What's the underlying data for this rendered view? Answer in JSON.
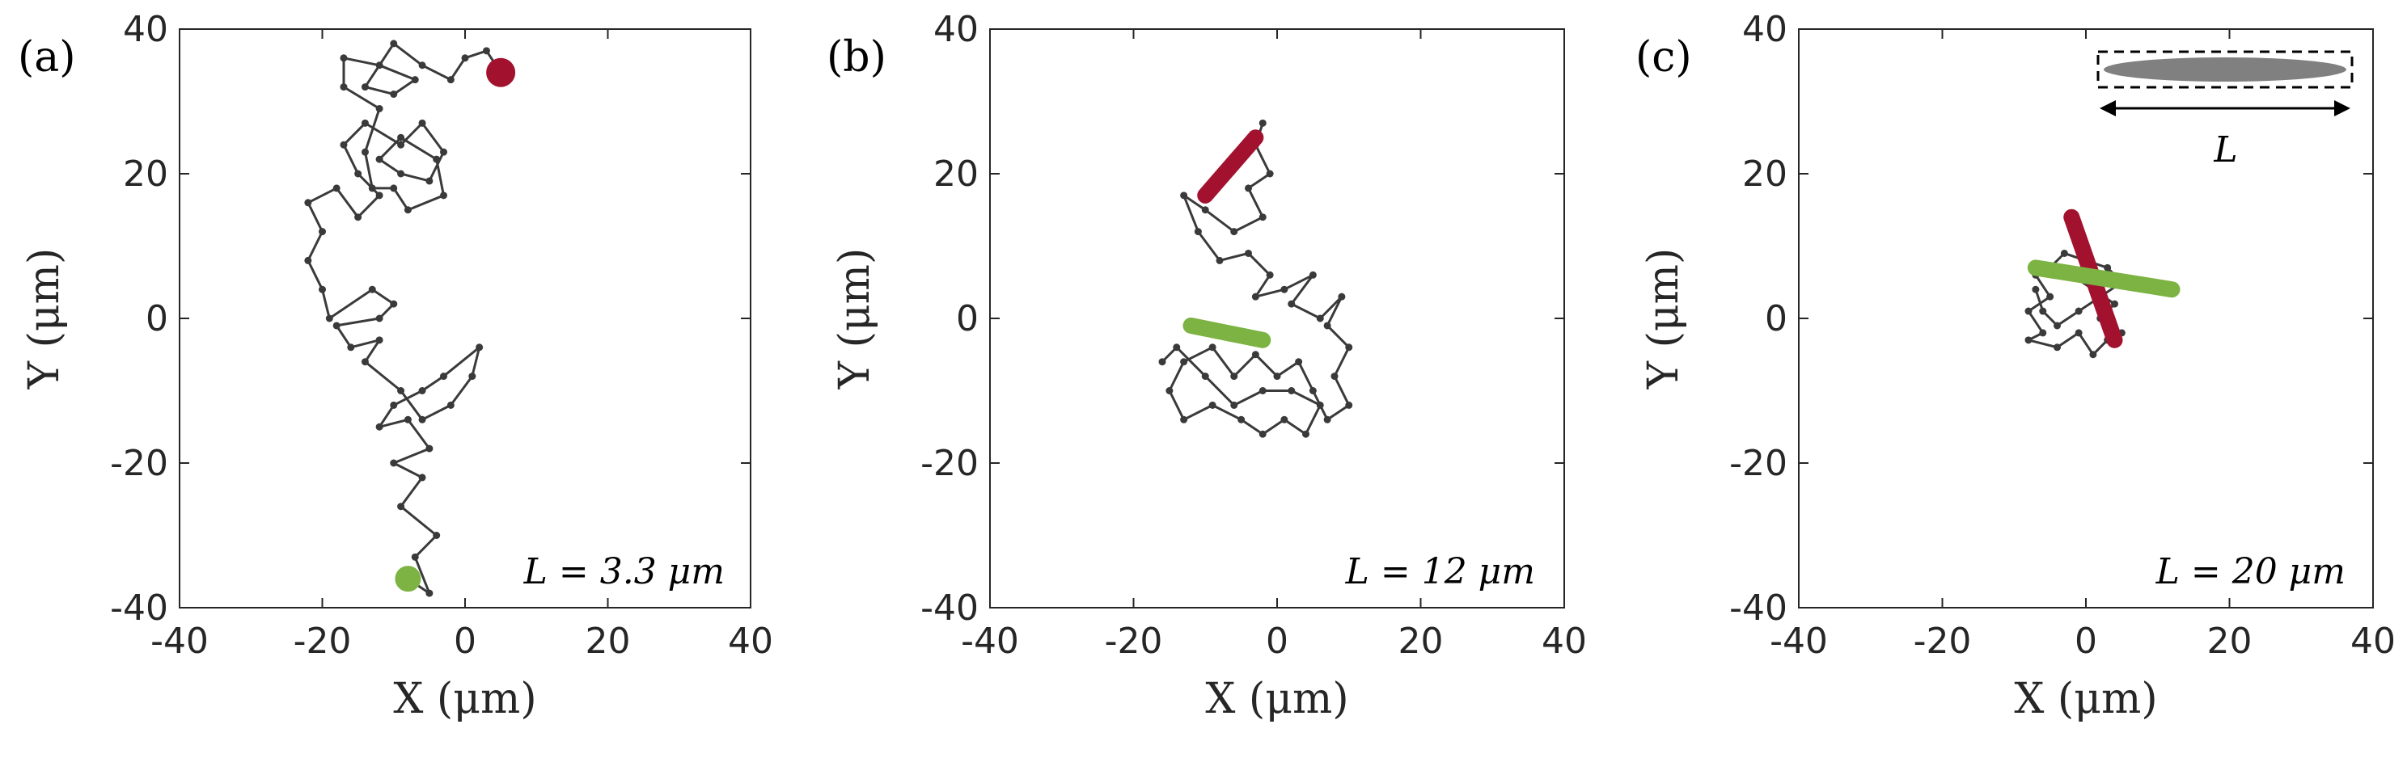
{
  "chart_data": [
    {
      "type": "scatter",
      "panel_label": "(a)",
      "annotation": "L = 3.3 μm",
      "xlabel": "X  (μm)",
      "ylabel": "Y  (μm)",
      "xlim": [
        -40,
        40
      ],
      "ylim": [
        -40,
        40
      ],
      "xticks": [
        "-40",
        "-20",
        "0",
        "20",
        "40"
      ],
      "yticks": [
        "-40",
        "-20",
        "0",
        "20",
        "40"
      ],
      "trajectory": [
        [
          -8,
          -36
        ],
        [
          -5,
          -38
        ],
        [
          -7,
          -33
        ],
        [
          -4,
          -30
        ],
        [
          -9,
          -26
        ],
        [
          -6,
          -22
        ],
        [
          -10,
          -20
        ],
        [
          -5,
          -18
        ],
        [
          -8,
          -14
        ],
        [
          -12,
          -15
        ],
        [
          -10,
          -12
        ],
        [
          -6,
          -10
        ],
        [
          -3,
          -8
        ],
        [
          2,
          -4
        ],
        [
          1,
          -8
        ],
        [
          -2,
          -12
        ],
        [
          -6,
          -14
        ],
        [
          -9,
          -10
        ],
        [
          -14,
          -6
        ],
        [
          -12,
          -3
        ],
        [
          -16,
          -4
        ],
        [
          -18,
          -1
        ],
        [
          -12,
          0
        ],
        [
          -10,
          2
        ],
        [
          -13,
          4
        ],
        [
          -19,
          0
        ],
        [
          -20,
          4
        ],
        [
          -22,
          8
        ],
        [
          -20,
          12
        ],
        [
          -22,
          16
        ],
        [
          -18,
          18
        ],
        [
          -15,
          14
        ],
        [
          -12,
          17
        ],
        [
          -15,
          20
        ],
        [
          -17,
          24
        ],
        [
          -14,
          27
        ],
        [
          -9,
          24
        ],
        [
          -6,
          27
        ],
        [
          -3,
          23
        ],
        [
          -5,
          19
        ],
        [
          -9,
          20
        ],
        [
          -12,
          22
        ],
        [
          -9,
          25
        ],
        [
          -4,
          22
        ],
        [
          -3,
          17
        ],
        [
          -8,
          15
        ],
        [
          -10,
          18
        ],
        [
          -13,
          18
        ],
        [
          -14,
          23
        ],
        [
          -12,
          29
        ],
        [
          -17,
          32
        ],
        [
          -17,
          36
        ],
        [
          -12,
          35
        ],
        [
          -7,
          33
        ],
        [
          -10,
          31
        ],
        [
          -14,
          32
        ],
        [
          -10,
          38
        ],
        [
          -6,
          35
        ],
        [
          -2,
          33
        ],
        [
          0,
          36
        ],
        [
          3,
          37
        ],
        [
          5,
          34
        ]
      ],
      "red_cluster_center": [
        5,
        34
      ],
      "green_cluster_center": [
        -8,
        -36
      ],
      "colors": {
        "trajectory": "#3a3a3a",
        "red": "#a2122f",
        "green": "#7cb342"
      }
    },
    {
      "type": "scatter",
      "panel_label": "(b)",
      "annotation": "L = 12 μm",
      "xlabel": "X  (μm)",
      "ylabel": "Y  (μm)",
      "xlim": [
        -40,
        40
      ],
      "ylim": [
        -40,
        40
      ],
      "xticks": [
        "-40",
        "-20",
        "0",
        "20",
        "40"
      ],
      "yticks": [
        "-40",
        "-20",
        "0",
        "20",
        "40"
      ],
      "trajectory": [
        [
          -2,
          27
        ],
        [
          -3,
          24
        ],
        [
          -1,
          20
        ],
        [
          -4,
          18
        ],
        [
          -2,
          14
        ],
        [
          -6,
          12
        ],
        [
          -10,
          15
        ],
        [
          -13,
          17
        ],
        [
          -11,
          12
        ],
        [
          -8,
          8
        ],
        [
          -4,
          9
        ],
        [
          -1,
          6
        ],
        [
          -3,
          3
        ],
        [
          1,
          4
        ],
        [
          5,
          6
        ],
        [
          2,
          2
        ],
        [
          6,
          0
        ],
        [
          9,
          3
        ],
        [
          7,
          -1
        ],
        [
          10,
          -4
        ],
        [
          8,
          -8
        ],
        [
          10,
          -12
        ],
        [
          7,
          -14
        ],
        [
          5,
          -10
        ],
        [
          3,
          -6
        ],
        [
          0,
          -8
        ],
        [
          -3,
          -5
        ],
        [
          -6,
          -8
        ],
        [
          -9,
          -4
        ],
        [
          -13,
          -6
        ],
        [
          -15,
          -10
        ],
        [
          -13,
          -14
        ],
        [
          -9,
          -12
        ],
        [
          -5,
          -14
        ],
        [
          -2,
          -16
        ],
        [
          1,
          -14
        ],
        [
          4,
          -16
        ],
        [
          6,
          -12
        ],
        [
          2,
          -10
        ],
        [
          -2,
          -10
        ],
        [
          -6,
          -12
        ],
        [
          -10,
          -8
        ],
        [
          -14,
          -4
        ],
        [
          -16,
          -6
        ]
      ],
      "red_segment": [
        [
          -10,
          17
        ],
        [
          -3,
          25
        ]
      ],
      "green_segment": [
        [
          -12,
          -1
        ],
        [
          -2,
          -3
        ]
      ],
      "colors": {
        "trajectory": "#3a3a3a",
        "red": "#a2122f",
        "green": "#7cb342"
      }
    },
    {
      "type": "scatter",
      "panel_label": "(c)",
      "annotation": "L = 20 μm",
      "inset_label": "L",
      "xlabel": "X  (μm)",
      "ylabel": "Y  (μm)",
      "xlim": [
        -40,
        40
      ],
      "ylim": [
        -40,
        40
      ],
      "xticks": [
        "-40",
        "-20",
        "0",
        "20",
        "40"
      ],
      "yticks": [
        "-40",
        "-20",
        "0",
        "20",
        "40"
      ],
      "trajectory": [
        [
          -7,
          6
        ],
        [
          -5,
          3
        ],
        [
          -8,
          1
        ],
        [
          -6,
          -2
        ],
        [
          -8,
          -3
        ],
        [
          -4,
          -4
        ],
        [
          -1,
          -2
        ],
        [
          1,
          -5
        ],
        [
          3,
          -3
        ],
        [
          5,
          -2
        ],
        [
          2,
          0
        ],
        [
          4,
          2
        ],
        [
          1,
          4
        ],
        [
          -2,
          6
        ],
        [
          -5,
          7
        ],
        [
          -3,
          9
        ],
        [
          0,
          8
        ],
        [
          3,
          7
        ],
        [
          5,
          5
        ],
        [
          2,
          3
        ],
        [
          -1,
          1
        ],
        [
          -4,
          -1
        ],
        [
          -6,
          1
        ],
        [
          -7,
          4
        ]
      ],
      "red_segment": [
        [
          -2,
          14
        ],
        [
          4,
          -3
        ]
      ],
      "green_segment": [
        [
          -7,
          7
        ],
        [
          12,
          4
        ]
      ],
      "colors": {
        "trajectory": "#3a3a3a",
        "red": "#a2122f",
        "green": "#7cb342",
        "inset": "#808080"
      }
    }
  ]
}
